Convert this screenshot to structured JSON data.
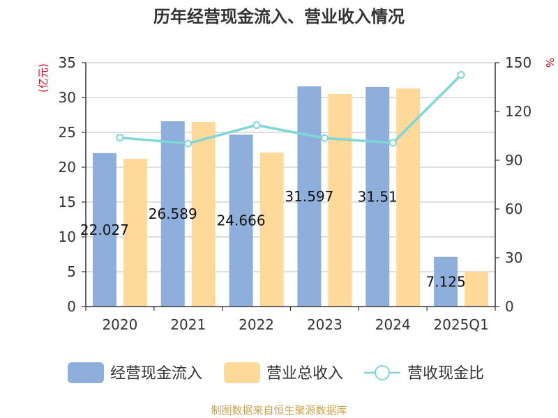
{
  "colors": {
    "bar1": "#8EAEDB",
    "bar2": "#FFD99A",
    "line": "#7FD6D6",
    "unit": "#D9001B",
    "source": "#C9A24C"
  },
  "chart_data": {
    "type": "bar",
    "title": "历年经营现金流入、营业收入情况",
    "categories": [
      "2020",
      "2021",
      "2022",
      "2023",
      "2024",
      "2025Q1"
    ],
    "series": [
      {
        "name": "经营现金流入",
        "type": "bar",
        "axis": "left",
        "values": [
          22.027,
          26.589,
          24.666,
          31.597,
          31.51,
          7.125
        ],
        "labels": [
          "22.027",
          "26.589",
          "24.666",
          "31.597",
          "31.51",
          "7.125"
        ]
      },
      {
        "name": "营业总收入",
        "type": "bar",
        "axis": "left",
        "values": [
          21.2,
          26.5,
          22.1,
          30.5,
          31.3,
          5.0
        ]
      },
      {
        "name": "营收现金比",
        "type": "line",
        "axis": "right",
        "values": [
          103.9,
          100.3,
          111.6,
          103.6,
          100.7,
          142.5
        ]
      }
    ],
    "y_left": {
      "label": "(亿元)",
      "ylim": [
        0,
        35
      ],
      "ticks": [
        0,
        5,
        10,
        15,
        20,
        25,
        30,
        35
      ]
    },
    "y_right": {
      "label": "%",
      "ylim": [
        0,
        150
      ],
      "ticks": [
        0,
        30,
        60,
        90,
        120,
        150
      ]
    },
    "grid": true,
    "legend_position": "bottom"
  },
  "source_text": "制图数据来自恒生聚源数据库"
}
